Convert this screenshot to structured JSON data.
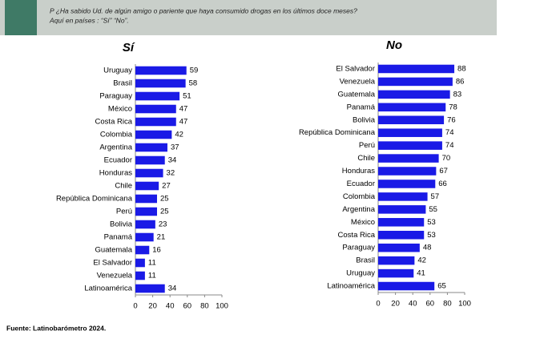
{
  "header": {
    "question": "P ¿Ha sabido Ud. de algún amigo o pariente que haya consumido drogas en los últimos doce meses?",
    "subtitle": "Aquí en países : “Sí” “No”."
  },
  "footer": {
    "source": "Fuente: Latinobarómetro 2024."
  },
  "chart_data": [
    {
      "type": "barh",
      "title": "Sí",
      "color": "#1a1ae6",
      "categories": [
        "Uruguay",
        "Brasil",
        "Paraguay",
        "México",
        "Costa Rica",
        "Colombia",
        "Argentina",
        "Ecuador",
        "Honduras",
        "Chile",
        "República Dominicana",
        "Perú",
        "Bolivia",
        "Panamá",
        "Guatemala",
        "El Salvador",
        "Venezuela",
        "Latinoamérica"
      ],
      "values": [
        59,
        58,
        51,
        47,
        47,
        42,
        37,
        34,
        32,
        27,
        25,
        25,
        23,
        21,
        16,
        11,
        11,
        34
      ],
      "xlim": [
        0,
        100
      ],
      "xticks": [
        0,
        20,
        40,
        60,
        80,
        100
      ]
    },
    {
      "type": "barh",
      "title": "No",
      "color": "#1a1ae6",
      "categories": [
        "El Salvador",
        "Venezuela",
        "Guatemala",
        "Panamá",
        "Bolivia",
        "República Dominicana",
        "Perú",
        "Chile",
        "Honduras",
        "Ecuador",
        "Colombia",
        "Argentina",
        "México",
        "Costa Rica",
        "Paraguay",
        "Brasil",
        "Uruguay",
        "Latinoamérica"
      ],
      "values": [
        88,
        86,
        83,
        78,
        76,
        74,
        74,
        70,
        67,
        66,
        57,
        55,
        53,
        53,
        48,
        42,
        41,
        65
      ],
      "xlim": [
        0,
        100
      ],
      "xticks": [
        0,
        20,
        40,
        60,
        80,
        100
      ]
    }
  ]
}
